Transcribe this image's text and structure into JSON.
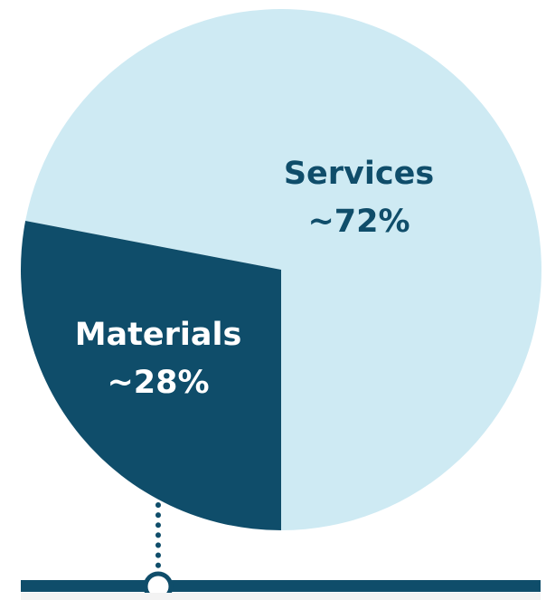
{
  "colors": {
    "services": "#ceeaf3",
    "materials": "#0f4d6a",
    "label_dark": "#0f4d6a",
    "label_light": "#ffffff",
    "rule": "#0f4d6a",
    "panel": "#f3f3f3"
  },
  "chart_data": {
    "type": "pie",
    "categories": [
      "Services",
      "Materials"
    ],
    "values": [
      72,
      28
    ],
    "value_labels": [
      "~72%",
      "~28%"
    ],
    "title": "",
    "legend": "none"
  }
}
